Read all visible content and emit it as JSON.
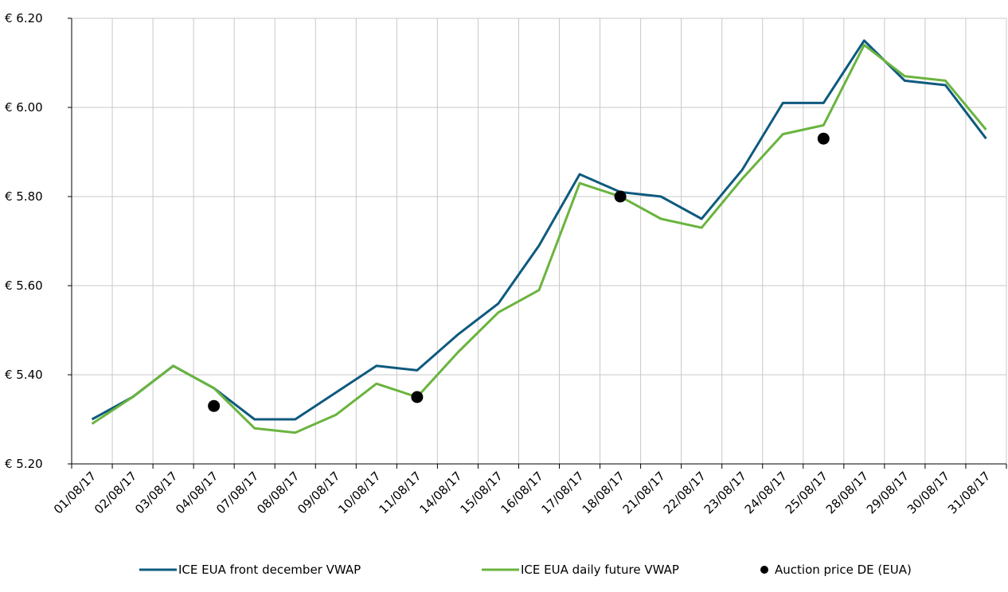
{
  "chart_data": {
    "type": "line",
    "categories": [
      "01/08/17",
      "02/08/17",
      "03/08/17",
      "04/08/17",
      "07/08/17",
      "08/08/17",
      "09/08/17",
      "10/08/17",
      "11/08/17",
      "14/08/17",
      "15/08/17",
      "16/08/17",
      "17/08/17",
      "18/08/17",
      "21/08/17",
      "22/08/17",
      "23/08/17",
      "24/08/17",
      "25/08/17",
      "28/08/17",
      "29/08/17",
      "30/08/17",
      "31/08/17"
    ],
    "y_tick_labels": [
      "€ 5.20",
      "€ 5.40",
      "€ 5.60",
      "€ 5.80",
      "€ 6.00",
      "€ 6.20"
    ],
    "y_tick_values": [
      5.2,
      5.4,
      5.6,
      5.8,
      6.0,
      6.2
    ],
    "ylim": [
      5.2,
      6.2
    ],
    "grid": true,
    "legend_placement": "bottom",
    "series": [
      {
        "name": "ICE EUA front december VWAP",
        "style": "line",
        "color": "#0e5a7e",
        "values": [
          5.3,
          5.35,
          5.42,
          5.37,
          5.3,
          5.3,
          5.36,
          5.42,
          5.41,
          5.49,
          5.56,
          5.69,
          5.85,
          5.81,
          5.8,
          5.75,
          5.86,
          6.01,
          6.01,
          6.15,
          6.06,
          6.05,
          5.93
        ]
      },
      {
        "name": "ICE EUA daily future VWAP",
        "style": "line",
        "color": "#6ab43e",
        "values": [
          5.29,
          5.35,
          5.42,
          5.37,
          5.28,
          5.27,
          5.31,
          5.38,
          5.35,
          5.45,
          5.54,
          5.59,
          5.83,
          5.8,
          5.75,
          5.73,
          5.84,
          5.94,
          5.96,
          6.14,
          6.07,
          6.06,
          5.95
        ]
      },
      {
        "name": "Auction price DE (EUA)",
        "style": "marker",
        "color": "#000000",
        "points": [
          {
            "x": "04/08/17",
            "y": 5.33
          },
          {
            "x": "11/08/17",
            "y": 5.35
          },
          {
            "x": "18/08/17",
            "y": 5.8
          },
          {
            "x": "25/08/17",
            "y": 5.93
          }
        ]
      }
    ]
  }
}
